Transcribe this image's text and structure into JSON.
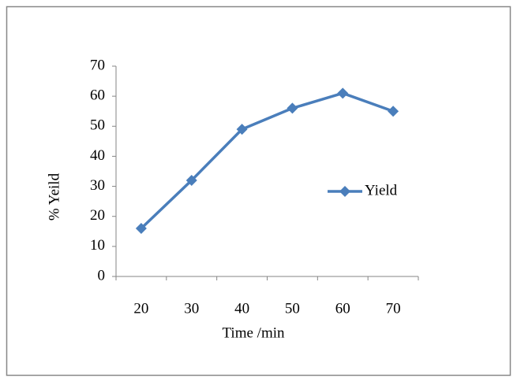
{
  "chart_data": {
    "type": "line",
    "categories": [
      "20",
      "30",
      "40",
      "50",
      "60",
      "70"
    ],
    "series": [
      {
        "name": "Yield",
        "color": "#4a7ebb",
        "values": [
          16,
          32,
          49,
          56,
          61,
          55
        ]
      }
    ],
    "ylim": [
      0,
      70
    ],
    "yticks": [
      0,
      10,
      20,
      30,
      40,
      50,
      60,
      70
    ],
    "x_label": "Time /min",
    "y_label": "% Yeild",
    "grid": false,
    "legend": "right"
  }
}
